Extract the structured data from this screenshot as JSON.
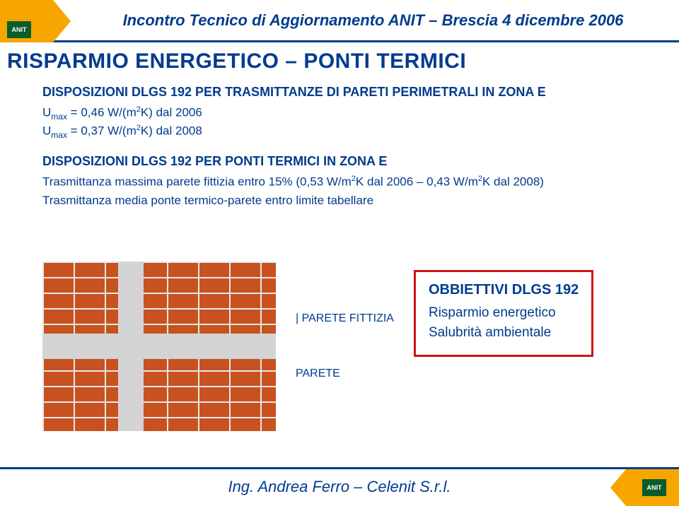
{
  "header": {
    "event_title": "Incontro Tecnico di Aggiornamento ANIT – Brescia 4 dicembre 2006",
    "logo_text": "ANIT"
  },
  "title": "RISPARMIO ENERGETICO – PONTI TERMICI",
  "dispo1": {
    "heading": "DISPOSIZIONI DLGS 192 PER TRASMITTANZE DI PARETI PERIMETRALI IN ZONA E",
    "u1_prefix": "U",
    "u1_sub": "max",
    "u1_mid": " = 0,46 W/(m",
    "u1_sup": "2",
    "u1_suffix": "K) dal 2006",
    "u2_prefix": "U",
    "u2_sub": "max",
    "u2_mid": " = 0,37 W/(m",
    "u2_sup": "2",
    "u2_suffix": "K) dal 2008"
  },
  "dispo2": {
    "heading": "DISPOSIZIONI DLGS 192 PER PONTI TERMICI IN ZONA E",
    "line1a": "Trasmittanza massima parete fittizia entro 15% (0,53 W/m",
    "line1sup1": "2",
    "line1b": "K dal 2006 – 0,43 W/m",
    "line1sup2": "2",
    "line1c": "K dal 2008)",
    "line2": "Trasmittanza media ponte termico-parete entro limite tabellare"
  },
  "labels": {
    "parete_fittizia": "| PARETE FITTIZIA",
    "parete": "PARETE"
  },
  "obbiettivi": {
    "title": "OBBIETTIVI DLGS 192",
    "l1": "Risparmio energetico",
    "l2": "Salubrità ambientale"
  },
  "footer": {
    "author": "Ing. Andrea Ferro – Celenit S.r.l."
  },
  "colors": {
    "primary": "#003b8e",
    "accent": "#f7a600",
    "brick": "#c7521f",
    "mortar": "#d4d4d4",
    "box_border": "#d01414",
    "logo_bg": "#0a5d2b"
  }
}
